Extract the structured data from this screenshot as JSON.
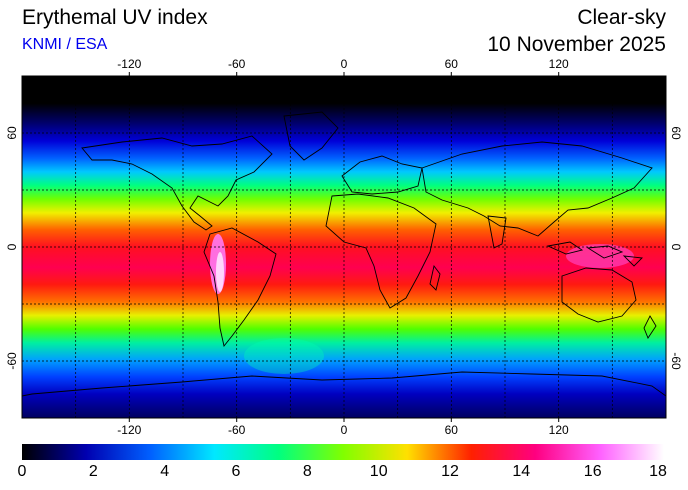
{
  "header": {
    "title": "Erythemal UV index",
    "source": "KNMI / ESA",
    "condition": "Clear-sky",
    "date": "10 November 2025"
  },
  "map": {
    "projection": "equirectangular",
    "lon_ticks": [
      "-120",
      "-60",
      "0",
      "60",
      "120"
    ],
    "lat_ticks": [
      "60",
      "0",
      "-60"
    ],
    "lon_range": [
      -180,
      180
    ],
    "lat_range": [
      -90,
      90
    ],
    "grid_lines": "dashed every 30 degrees"
  },
  "colorbar": {
    "labels": [
      "0",
      "2",
      "4",
      "6",
      "8",
      "10",
      "12",
      "14",
      "16",
      "18"
    ],
    "range": [
      0,
      18
    ],
    "colors": [
      "#000000",
      "#0000b0",
      "#0060ff",
      "#00e8ff",
      "#00ff80",
      "#80ff00",
      "#ffe000",
      "#ff2000",
      "#ff0080",
      "#ff60ff",
      "#ffffff"
    ]
  }
}
